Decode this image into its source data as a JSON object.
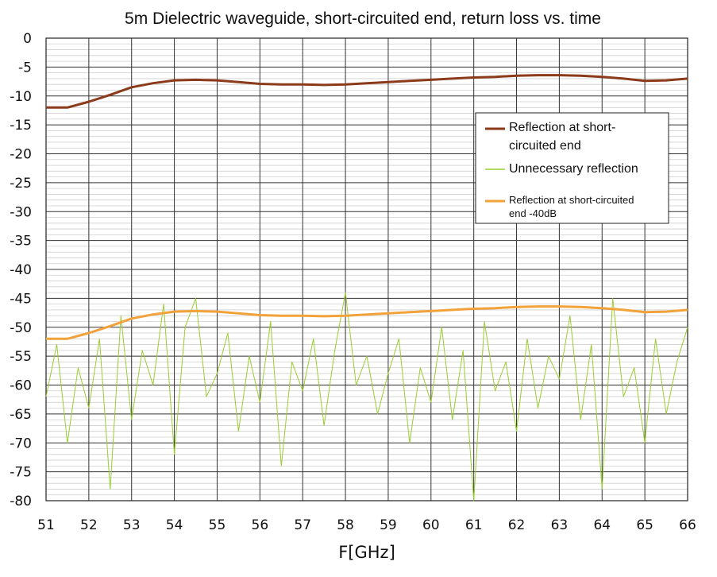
{
  "chart_data": {
    "type": "line",
    "title": "5m Dielectric waveguide, short-circuited end, return loss vs. time",
    "xlabel": "F[GHz]",
    "ylabel": "",
    "xlim": [
      51,
      66
    ],
    "ylim": [
      -80,
      0
    ],
    "x_ticks": [
      "51",
      "52",
      "53",
      "54",
      "55",
      "56",
      "57",
      "58",
      "59",
      "60",
      "61",
      "62",
      "63",
      "64",
      "65",
      "66"
    ],
    "y_ticks": [
      "0",
      "-5",
      "-10",
      "-15",
      "-20",
      "-25",
      "-30",
      "-35",
      "-40",
      "-45",
      "-50",
      "-55",
      "-60",
      "-65",
      "-70",
      "-75",
      "-80"
    ],
    "grid": true,
    "legend_position": "right",
    "series": [
      {
        "name": "Reflection at short-circuited end",
        "color": "#8b3a1a",
        "x": [
          51,
          51.5,
          52,
          52.5,
          53,
          53.5,
          54,
          54.5,
          55,
          55.5,
          56,
          56.5,
          57,
          57.5,
          58,
          58.5,
          59,
          59.5,
          60,
          60.5,
          61,
          61.5,
          62,
          62.5,
          63,
          63.5,
          64,
          64.5,
          65,
          65.5,
          66
        ],
        "values": [
          -12,
          -12,
          -11,
          -9.8,
          -8.5,
          -7.8,
          -7.3,
          -7.2,
          -7.3,
          -7.6,
          -7.9,
          -8.0,
          -8.0,
          -8.1,
          -8.0,
          -7.8,
          -7.6,
          -7.4,
          -7.2,
          -7.0,
          -6.8,
          -6.7,
          -6.5,
          -6.4,
          -6.4,
          -6.5,
          -6.7,
          -7.0,
          -7.4,
          -7.3,
          -7.0
        ]
      },
      {
        "name": "Unnecessary reflection",
        "color": "#9acd32",
        "x": [
          51,
          51.25,
          51.5,
          51.75,
          52,
          52.25,
          52.5,
          52.75,
          53,
          53.25,
          53.5,
          53.75,
          54,
          54.25,
          54.5,
          54.75,
          55,
          55.25,
          55.5,
          55.75,
          56,
          56.25,
          56.5,
          56.75,
          57,
          57.25,
          57.5,
          57.75,
          58,
          58.25,
          58.5,
          58.75,
          59,
          59.25,
          59.5,
          59.75,
          60,
          60.25,
          60.5,
          60.75,
          61,
          61.25,
          61.5,
          61.75,
          62,
          62.25,
          62.5,
          62.75,
          63,
          63.25,
          63.5,
          63.75,
          64,
          64.25,
          64.5,
          64.75,
          65,
          65.25,
          65.5,
          65.75,
          66
        ],
        "values": [
          -62,
          -53,
          -70,
          -57,
          -64,
          -52,
          -78,
          -48,
          -66,
          -54,
          -60,
          -46,
          -72,
          -50,
          -45,
          -62,
          -58,
          -51,
          -68,
          -55,
          -63,
          -49,
          -74,
          -56,
          -61,
          -52,
          -67,
          -54,
          -44,
          -60,
          -55,
          -65,
          -58,
          -52,
          -70,
          -57,
          -63,
          -50,
          -66,
          -54,
          -80,
          -49,
          -61,
          -56,
          -68,
          -52,
          -64,
          -55,
          -59,
          -48,
          -66,
          -53,
          -78,
          -45,
          -62,
          -57,
          -70,
          -52,
          -65,
          -56,
          -50
        ]
      },
      {
        "name": "Reflection at short-circuited end -40dB",
        "color": "#f2a23a",
        "x": [
          51,
          51.5,
          52,
          52.5,
          53,
          53.5,
          54,
          54.5,
          55,
          55.5,
          56,
          56.5,
          57,
          57.5,
          58,
          58.5,
          59,
          59.5,
          60,
          60.5,
          61,
          61.5,
          62,
          62.5,
          63,
          63.5,
          64,
          64.5,
          65,
          65.5,
          66
        ],
        "values": [
          -52,
          -52,
          -51,
          -49.8,
          -48.5,
          -47.8,
          -47.3,
          -47.2,
          -47.3,
          -47.6,
          -47.9,
          -48.0,
          -48.0,
          -48.1,
          -48.0,
          -47.8,
          -47.6,
          -47.4,
          -47.2,
          -47.0,
          -46.8,
          -46.7,
          -46.5,
          -46.4,
          -46.4,
          -46.5,
          -46.7,
          -47.0,
          -47.4,
          -47.3,
          -47.0
        ]
      }
    ],
    "legend": [
      {
        "lines": [
          "Reflection at short-",
          "circuited end"
        ]
      },
      {
        "lines": [
          "Unnecessary reflection"
        ]
      },
      {
        "lines": [
          "Reflection at short-circuited",
          "end -40dB"
        ]
      }
    ]
  }
}
